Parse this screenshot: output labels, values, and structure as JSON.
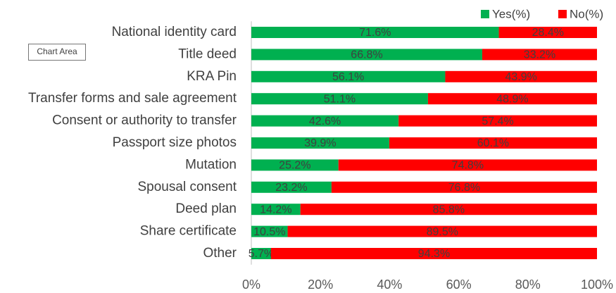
{
  "tooltip": "Chart Area",
  "chart_data": {
    "type": "stacked_bar_horizontal",
    "categories": [
      "National identity card",
      "Title deed",
      "KRA Pin",
      "Transfer forms and sale agreement",
      "Consent or authority to transfer",
      "Passport size photos",
      "Mutation",
      "Spousal consent",
      "Deed plan",
      "Share certificate",
      "Other"
    ],
    "series": [
      {
        "name": "Yes(%)",
        "color": "#00b050",
        "values": [
          71.6,
          66.8,
          56.1,
          51.1,
          42.6,
          39.9,
          25.2,
          23.2,
          14.2,
          10.5,
          5.7
        ],
        "value_labels": [
          "71.6%",
          "66.8%",
          "56.1%",
          "51.1%",
          "42.6%",
          "39.9%",
          "25.2%",
          "23.2%",
          "14.2%",
          "10.5%",
          "5.7%"
        ]
      },
      {
        "name": "No(%)",
        "color": "#ff0000",
        "values": [
          28.4,
          33.2,
          43.9,
          48.9,
          57.4,
          60.1,
          74.8,
          76.8,
          85.8,
          89.5,
          94.3
        ],
        "value_labels": [
          "28.4%",
          "33.2%",
          "43.9%",
          "48.9%",
          "57.4%",
          "60.1%",
          "74.8%",
          "76.8%",
          "85.8%",
          "89.5%",
          "94.3%"
        ]
      }
    ],
    "xlim": [
      0,
      100
    ],
    "xticks": [
      {
        "value": 0,
        "label": "0%"
      },
      {
        "value": 20,
        "label": "20%"
      },
      {
        "value": 40,
        "label": "40%"
      },
      {
        "value": 60,
        "label": "60%"
      },
      {
        "value": 80,
        "label": "80%"
      },
      {
        "value": 100,
        "label": "100%"
      }
    ],
    "legend": "top-right"
  }
}
